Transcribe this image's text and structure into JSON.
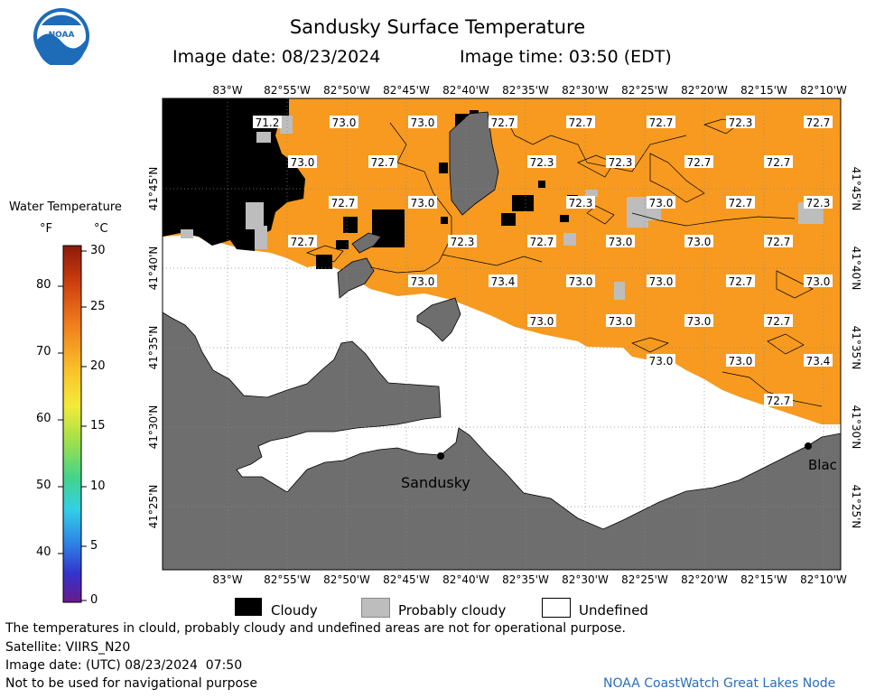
{
  "header": {
    "title": "Sandusky Surface Temperature",
    "image_date": "Image date: 08/23/2024",
    "image_time": "Image time: 03:50 (EDT)"
  },
  "legend": {
    "title": "Water Temperature",
    "unit_f": "°F",
    "unit_c": "°C",
    "f_ticks": [
      "80",
      "70",
      "60",
      "50",
      "40"
    ],
    "c_ticks": [
      "30",
      "25",
      "20",
      "15",
      "10",
      "5",
      "0"
    ]
  },
  "map": {
    "lon_labels": [
      "83°W",
      "82°55'W",
      "82°50'W",
      "82°45'W",
      "82°40'W",
      "82°35'W",
      "82°30'W",
      "82°25'W",
      "82°20'W",
      "82°15'W",
      "82°10'W"
    ],
    "lat_labels": [
      "41°45'N",
      "41°40'N",
      "41°35'N",
      "41°30'N",
      "41°25'N"
    ],
    "places": [
      {
        "name": "Sandusky"
      },
      {
        "name": "Blac"
      }
    ],
    "temperature_labels": [
      "71.2",
      "73.0",
      "73.0",
      "72.7",
      "72.7",
      "72.7",
      "72.3",
      "72.7",
      "73.0",
      "72.7",
      "72.3",
      "72.3",
      "72.7",
      "72.7",
      "72.7",
      "73.0",
      "72.3",
      "73.0",
      "72.7",
      "72.3",
      "72.7",
      "72.3",
      "72.7",
      "73.0",
      "73.0",
      "72.7",
      "73.0",
      "73.4",
      "73.0",
      "73.0",
      "72.7",
      "73.0",
      "73.0",
      "73.0",
      "73.0",
      "72.7",
      "73.0",
      "73.0",
      "73.4",
      "72.7"
    ]
  },
  "swatches": {
    "cloudy": "Cloudy",
    "probably_cloudy": "Probably cloudy",
    "undefined": "Undefined"
  },
  "footer": {
    "line1": "The temperatures in clould, probably cloudy and undefined areas are not for operational purpose.",
    "line2": "Satellite: VIIRS_N20",
    "line3": "Image date: (UTC) 08/23/2024  07:50",
    "line4": "Not to be used for navigational purpose",
    "credit": "NOAA CoastWatch Great Lakes Node"
  },
  "colors": {
    "water_warm": "#f79a1f",
    "land": "#6e6e6e",
    "cloud": "#000000",
    "probably_cloudy": "#bdbdbd",
    "undefined": "#ffffff",
    "credit_text": "#2a6fb7"
  }
}
